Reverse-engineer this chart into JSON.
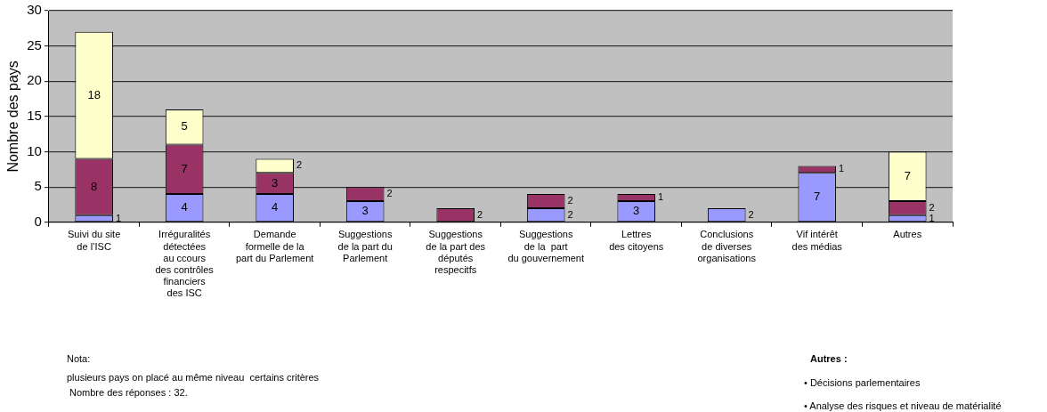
{
  "chart_data": {
    "type": "bar",
    "ylabel": "Nombre des pays",
    "categories": [
      "Suivi du site\nde l’ISC",
      "Irréguralités\ndétectées\nau ccours\ndes contrôles\nfinanciers\ndes ISC",
      "Demande\nformelle de la\npart du Parlement",
      "Suggestions\nde la part du\nParlement",
      "Suggestions\nde la part des\ndéputés\nrespecitfs",
      "Suggestions\nde la  part\ndu gouvernement",
      "Lettres\ndes citoyens",
      "Conclusions\nde diverses\norganisations",
      "Vif intérêt\ndes médias",
      "Autres"
    ],
    "series": [
      {
        "color": "#9999ff",
        "values": [
          1,
          4,
          4,
          3,
          null,
          2,
          3,
          2,
          7,
          1
        ]
      },
      {
        "color": "#993366",
        "values": [
          8,
          7,
          3,
          2,
          2,
          2,
          1,
          null,
          1,
          2
        ]
      },
      {
        "color": "#ffffcc",
        "values": [
          18,
          5,
          2,
          null,
          null,
          null,
          null,
          null,
          null,
          7
        ]
      }
    ],
    "stacked": true,
    "data_labels": true,
    "grid": "y",
    "legend": false,
    "ylim": [
      0,
      30
    ],
    "yticks": [
      0,
      5,
      10,
      15,
      20,
      25,
      30
    ],
    "annotations": [
      "Nota:",
      "plusieurs pays on placé au même niveau  certains critères",
      "Nombre des réponses : 32.",
      "Autres :",
      "• Décisions parlementaires",
      "• Analyse des risques et niveau de matérialité"
    ]
  }
}
